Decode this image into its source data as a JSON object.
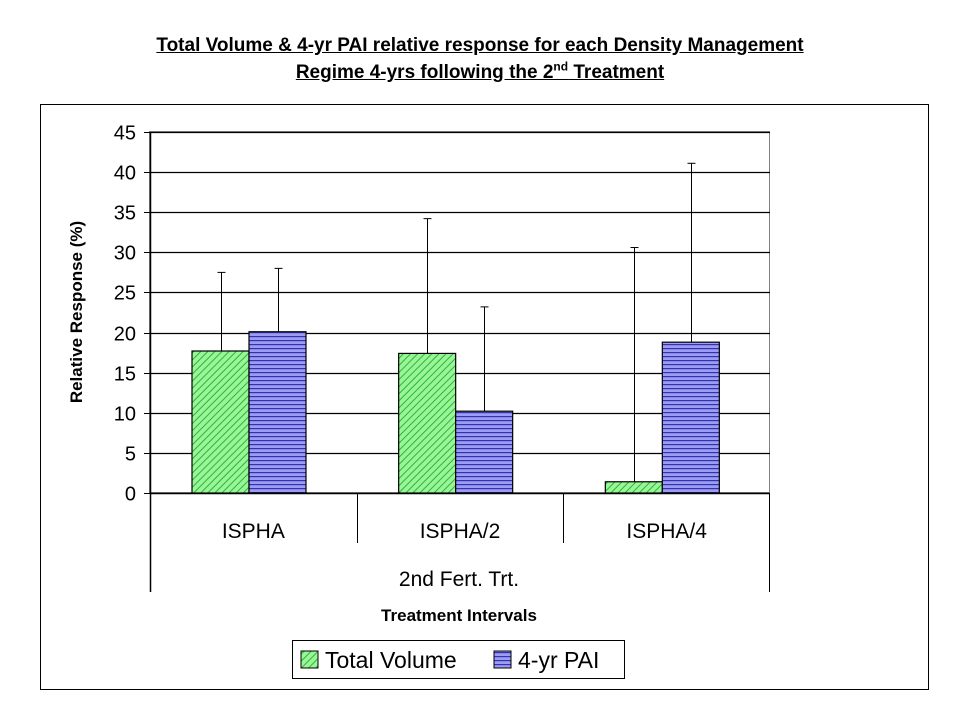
{
  "title": {
    "line1": "Total Volume & 4-yr PAI relative response for each Density Management",
    "line2_pre": "Regime 4-yrs following the 2",
    "line2_sup": "nd",
    "line2_post": " Treatment"
  },
  "chart_data": {
    "type": "bar",
    "ylabel": "Relative Response (%)",
    "xlabel": "Treatment Intervals",
    "group_label": "2nd Fert. Trt.",
    "ylim": [
      0,
      45
    ],
    "ytick_step": 5,
    "grid": true,
    "legend_position": "bottom",
    "categories": [
      "ISPHA",
      "ISPHA/2",
      "ISPHA/4"
    ],
    "series": [
      {
        "name": "Total Volume",
        "values": [
          17.7,
          17.4,
          1.4
        ],
        "error_upper": [
          27.5,
          34.2,
          30.6
        ],
        "color": "#66ee66",
        "pattern": "diagonal-stripes"
      },
      {
        "name": "4-yr PAI",
        "values": [
          20.1,
          10.2,
          18.8
        ],
        "error_upper": [
          28.0,
          23.2,
          41.1
        ],
        "color": "#8888ee",
        "pattern": "horizontal-stripes"
      }
    ]
  }
}
